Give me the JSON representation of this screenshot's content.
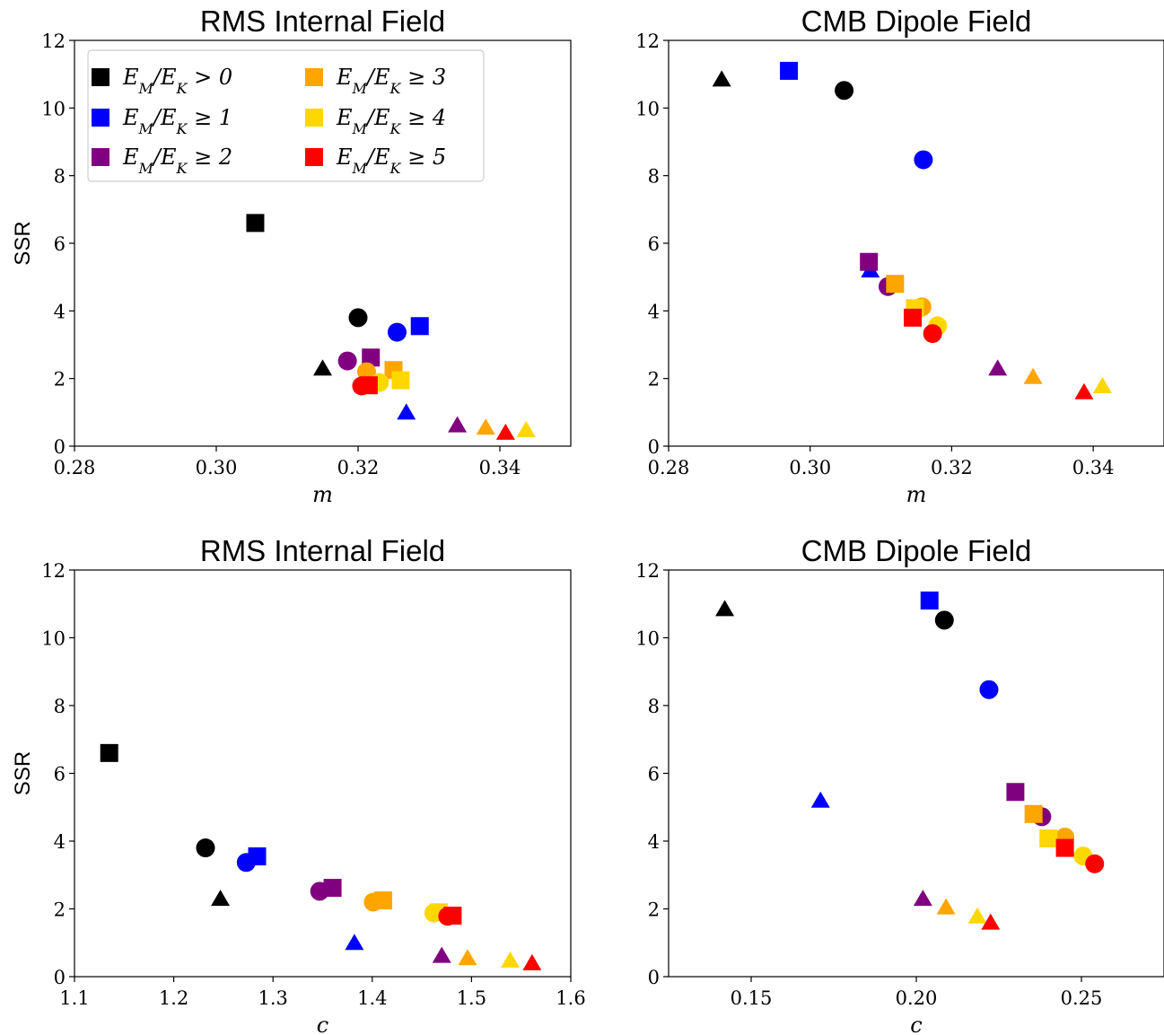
{
  "legend": {
    "placement": "upper-left",
    "entries": [
      {
        "label": "E_M/E_K > 0",
        "color": "#000000"
      },
      {
        "label": "E_M/E_K ≥ 1",
        "color": "#0000ff"
      },
      {
        "label": "E_M/E_K ≥ 2",
        "color": "#800080"
      },
      {
        "label": "E_M/E_K ≥ 3",
        "color": "#ffa500"
      },
      {
        "label": "E_M/E_K ≥ 4",
        "color": "#ffd700"
      },
      {
        "label": "E_M/E_K ≥ 5",
        "color": "#ff0000"
      }
    ]
  },
  "chart_data": [
    {
      "type": "scatter",
      "title": "RMS Internal Field",
      "xlabel": "m",
      "ylabel": "SSR",
      "xlim": [
        0.28,
        0.35
      ],
      "ylim": [
        0,
        12
      ],
      "xticks": [
        "0.28",
        "0.30",
        "0.32",
        "0.34"
      ],
      "yticks": [
        "0",
        "2",
        "4",
        "6",
        "8",
        "10",
        "12"
      ],
      "points": [
        {
          "x": 0.3055,
          "y": 6.6,
          "marker": "square",
          "color": "#000000"
        },
        {
          "x": 0.32,
          "y": 3.8,
          "marker": "circle",
          "color": "#000000"
        },
        {
          "x": 0.315,
          "y": 2.3,
          "marker": "triangle",
          "color": "#000000"
        },
        {
          "x": 0.3287,
          "y": 3.55,
          "marker": "square",
          "color": "#0000ff"
        },
        {
          "x": 0.3255,
          "y": 3.37,
          "marker": "circle",
          "color": "#0000ff"
        },
        {
          "x": 0.3268,
          "y": 1.0,
          "marker": "triangle",
          "color": "#0000ff"
        },
        {
          "x": 0.3218,
          "y": 2.62,
          "marker": "square",
          "color": "#800080"
        },
        {
          "x": 0.3185,
          "y": 2.52,
          "marker": "circle",
          "color": "#800080"
        },
        {
          "x": 0.334,
          "y": 0.62,
          "marker": "triangle",
          "color": "#800080"
        },
        {
          "x": 0.325,
          "y": 2.25,
          "marker": "square",
          "color": "#ffa500"
        },
        {
          "x": 0.3212,
          "y": 2.2,
          "marker": "circle",
          "color": "#ffa500"
        },
        {
          "x": 0.338,
          "y": 0.55,
          "marker": "triangle",
          "color": "#ffa500"
        },
        {
          "x": 0.326,
          "y": 1.95,
          "marker": "square",
          "color": "#ffd700"
        },
        {
          "x": 0.323,
          "y": 1.88,
          "marker": "circle",
          "color": "#ffd700"
        },
        {
          "x": 0.3437,
          "y": 0.48,
          "marker": "triangle",
          "color": "#ffd700"
        },
        {
          "x": 0.3215,
          "y": 1.8,
          "marker": "square",
          "color": "#ff0000"
        },
        {
          "x": 0.3205,
          "y": 1.78,
          "marker": "circle",
          "color": "#ff0000"
        },
        {
          "x": 0.3408,
          "y": 0.4,
          "marker": "triangle",
          "color": "#ff0000"
        }
      ]
    },
    {
      "type": "scatter",
      "title": "CMB Dipole Field",
      "xlabel": "m",
      "ylabel": "",
      "xlim": [
        0.28,
        0.35
      ],
      "ylim": [
        0,
        12
      ],
      "xticks": [
        "0.28",
        "0.30",
        "0.32",
        "0.34"
      ],
      "yticks": [
        "0",
        "2",
        "4",
        "6",
        "8",
        "10",
        "12"
      ],
      "points": [
        {
          "x": 0.3048,
          "y": 10.52,
          "marker": "circle",
          "color": "#000000"
        },
        {
          "x": 0.2875,
          "y": 10.85,
          "marker": "triangle",
          "color": "#000000"
        },
        {
          "x": 0.297,
          "y": 11.1,
          "marker": "square",
          "color": "#0000ff"
        },
        {
          "x": 0.316,
          "y": 8.47,
          "marker": "circle",
          "color": "#0000ff"
        },
        {
          "x": 0.3085,
          "y": 5.2,
          "marker": "triangle",
          "color": "#0000ff"
        },
        {
          "x": 0.3083,
          "y": 5.45,
          "marker": "square",
          "color": "#800080"
        },
        {
          "x": 0.311,
          "y": 4.72,
          "marker": "circle",
          "color": "#800080"
        },
        {
          "x": 0.3265,
          "y": 2.3,
          "marker": "triangle",
          "color": "#800080"
        },
        {
          "x": 0.312,
          "y": 4.8,
          "marker": "square",
          "color": "#ffa500"
        },
        {
          "x": 0.3158,
          "y": 4.12,
          "marker": "circle",
          "color": "#ffa500"
        },
        {
          "x": 0.3315,
          "y": 2.05,
          "marker": "triangle",
          "color": "#ffa500"
        },
        {
          "x": 0.3148,
          "y": 4.08,
          "marker": "square",
          "color": "#ffd700"
        },
        {
          "x": 0.318,
          "y": 3.56,
          "marker": "circle",
          "color": "#ffd700"
        },
        {
          "x": 0.3413,
          "y": 1.78,
          "marker": "triangle",
          "color": "#ffd700"
        },
        {
          "x": 0.3145,
          "y": 3.8,
          "marker": "square",
          "color": "#ff0000"
        },
        {
          "x": 0.3173,
          "y": 3.33,
          "marker": "circle",
          "color": "#ff0000"
        },
        {
          "x": 0.3387,
          "y": 1.6,
          "marker": "triangle",
          "color": "#ff0000"
        }
      ]
    },
    {
      "type": "scatter",
      "title": "RMS Internal Field",
      "xlabel": "c",
      "ylabel": "SSR",
      "xlim": [
        1.1,
        1.6
      ],
      "ylim": [
        0,
        12
      ],
      "xticks": [
        "1.1",
        "1.2",
        "1.3",
        "1.4",
        "1.5",
        "1.6"
      ],
      "yticks": [
        "0",
        "2",
        "4",
        "6",
        "8",
        "10",
        "12"
      ],
      "points": [
        {
          "x": 1.135,
          "y": 6.6,
          "marker": "square",
          "color": "#000000"
        },
        {
          "x": 1.232,
          "y": 3.8,
          "marker": "circle",
          "color": "#000000"
        },
        {
          "x": 1.247,
          "y": 2.3,
          "marker": "triangle",
          "color": "#000000"
        },
        {
          "x": 1.284,
          "y": 3.55,
          "marker": "square",
          "color": "#0000ff"
        },
        {
          "x": 1.273,
          "y": 3.37,
          "marker": "circle",
          "color": "#0000ff"
        },
        {
          "x": 1.382,
          "y": 1.0,
          "marker": "triangle",
          "color": "#0000ff"
        },
        {
          "x": 1.36,
          "y": 2.62,
          "marker": "square",
          "color": "#800080"
        },
        {
          "x": 1.347,
          "y": 2.52,
          "marker": "circle",
          "color": "#800080"
        },
        {
          "x": 1.47,
          "y": 0.62,
          "marker": "triangle",
          "color": "#800080"
        },
        {
          "x": 1.411,
          "y": 2.25,
          "marker": "square",
          "color": "#ffa500"
        },
        {
          "x": 1.401,
          "y": 2.2,
          "marker": "circle",
          "color": "#ffa500"
        },
        {
          "x": 1.496,
          "y": 0.55,
          "marker": "triangle",
          "color": "#ffa500"
        },
        {
          "x": 1.467,
          "y": 1.9,
          "marker": "square",
          "color": "#ffd700"
        },
        {
          "x": 1.462,
          "y": 1.88,
          "marker": "circle",
          "color": "#ffd700"
        },
        {
          "x": 1.539,
          "y": 0.48,
          "marker": "triangle",
          "color": "#ffd700"
        },
        {
          "x": 1.481,
          "y": 1.8,
          "marker": "square",
          "color": "#ff0000"
        },
        {
          "x": 1.476,
          "y": 1.78,
          "marker": "circle",
          "color": "#ff0000"
        },
        {
          "x": 1.561,
          "y": 0.4,
          "marker": "triangle",
          "color": "#ff0000"
        }
      ]
    },
    {
      "type": "scatter",
      "title": "CMB Dipole Field",
      "xlabel": "c",
      "ylabel": "",
      "xlim": [
        0.125,
        0.275
      ],
      "ylim": [
        0,
        12
      ],
      "xticks": [
        "0.15",
        "0.20",
        "0.25"
      ],
      "xtick_values": [
        0.15,
        0.2,
        0.25
      ],
      "yticks": [
        "0",
        "2",
        "4",
        "6",
        "8",
        "10",
        "12"
      ],
      "points": [
        {
          "x": 0.2085,
          "y": 10.52,
          "marker": "circle",
          "color": "#000000"
        },
        {
          "x": 0.142,
          "y": 10.85,
          "marker": "triangle",
          "color": "#000000"
        },
        {
          "x": 0.204,
          "y": 11.1,
          "marker": "square",
          "color": "#0000ff"
        },
        {
          "x": 0.222,
          "y": 8.47,
          "marker": "circle",
          "color": "#0000ff"
        },
        {
          "x": 0.171,
          "y": 5.2,
          "marker": "triangle",
          "color": "#0000ff"
        },
        {
          "x": 0.23,
          "y": 5.45,
          "marker": "square",
          "color": "#800080"
        },
        {
          "x": 0.238,
          "y": 4.72,
          "marker": "circle",
          "color": "#800080"
        },
        {
          "x": 0.202,
          "y": 2.3,
          "marker": "triangle",
          "color": "#800080"
        },
        {
          "x": 0.2355,
          "y": 4.8,
          "marker": "square",
          "color": "#ffa500"
        },
        {
          "x": 0.245,
          "y": 4.12,
          "marker": "circle",
          "color": "#ffa500"
        },
        {
          "x": 0.209,
          "y": 2.05,
          "marker": "triangle",
          "color": "#ffa500"
        },
        {
          "x": 0.24,
          "y": 4.08,
          "marker": "square",
          "color": "#ffd700"
        },
        {
          "x": 0.2505,
          "y": 3.56,
          "marker": "circle",
          "color": "#ffd700"
        },
        {
          "x": 0.2185,
          "y": 1.78,
          "marker": "triangle",
          "color": "#ffd700"
        },
        {
          "x": 0.245,
          "y": 3.8,
          "marker": "square",
          "color": "#ff0000"
        },
        {
          "x": 0.254,
          "y": 3.33,
          "marker": "circle",
          "color": "#ff0000"
        },
        {
          "x": 0.2225,
          "y": 1.6,
          "marker": "triangle",
          "color": "#ff0000"
        }
      ]
    }
  ]
}
